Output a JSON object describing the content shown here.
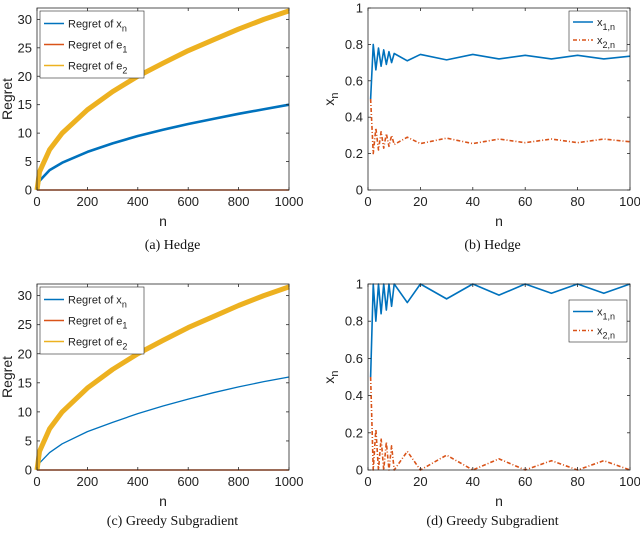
{
  "chart_data": [
    {
      "type": "line",
      "caption": "(a) Hedge",
      "xlabel": "n",
      "ylabel": "Regret",
      "xlim": [
        0,
        1000
      ],
      "ylim": [
        0,
        32
      ],
      "xticks": [
        0,
        200,
        400,
        600,
        800,
        1000
      ],
      "yticks": [
        0,
        5,
        10,
        15,
        20,
        25,
        30
      ],
      "legend_position": "top-left",
      "series": [
        {
          "name": "Regret of x_n",
          "base": "Regret of x",
          "sub": "n",
          "color": "#0072BD",
          "x": [
            0,
            10,
            50,
            100,
            200,
            300,
            400,
            500,
            600,
            700,
            800,
            900,
            1000
          ],
          "y": [
            0,
            1.6,
            3.5,
            4.8,
            6.7,
            8.2,
            9.5,
            10.6,
            11.6,
            12.5,
            13.4,
            14.2,
            15.0
          ]
        },
        {
          "name": "Regret of e_1",
          "base": "Regret of e",
          "sub": "1",
          "color": "#D95319",
          "x": [
            0,
            1000
          ],
          "y": [
            0,
            0
          ]
        },
        {
          "name": "Regret of e_2",
          "base": "Regret of e",
          "sub": "2",
          "color": "#EDB120",
          "x": [
            0,
            10,
            50,
            100,
            200,
            300,
            400,
            500,
            600,
            700,
            800,
            900,
            1000
          ],
          "y": [
            0,
            3.2,
            7.1,
            10.0,
            14.1,
            17.3,
            20.0,
            22.3,
            24.5,
            26.4,
            28.3,
            30.0,
            31.5
          ]
        }
      ]
    },
    {
      "type": "line",
      "caption": "(b) Hedge",
      "xlabel": "n",
      "ylabel": "x_n",
      "ylabel_base": "x",
      "ylabel_sub": "n",
      "xlim": [
        0,
        100
      ],
      "ylim": [
        0,
        1
      ],
      "xticks": [
        0,
        20,
        40,
        60,
        80,
        100
      ],
      "yticks": [
        0,
        0.2,
        0.4,
        0.6,
        0.8,
        1
      ],
      "legend_position": "top-right",
      "series": [
        {
          "name": "x_1,n",
          "base": "x",
          "sub": "1,n",
          "color": "#0072BD",
          "style": "solid",
          "x": [
            1,
            2,
            3,
            4,
            5,
            6,
            7,
            8,
            9,
            10,
            15,
            20,
            30,
            40,
            50,
            60,
            70,
            80,
            90,
            100
          ],
          "y": [
            0.5,
            0.8,
            0.66,
            0.78,
            0.68,
            0.77,
            0.69,
            0.76,
            0.7,
            0.75,
            0.71,
            0.745,
            0.715,
            0.745,
            0.72,
            0.74,
            0.72,
            0.74,
            0.72,
            0.735
          ]
        },
        {
          "name": "x_2,n",
          "base": "x",
          "sub": "2,n",
          "color": "#D95319",
          "style": "dashdot",
          "x": [
            1,
            2,
            3,
            4,
            5,
            6,
            7,
            8,
            9,
            10,
            15,
            20,
            30,
            40,
            50,
            60,
            70,
            80,
            90,
            100
          ],
          "y": [
            0.5,
            0.2,
            0.34,
            0.22,
            0.32,
            0.23,
            0.31,
            0.24,
            0.3,
            0.25,
            0.29,
            0.255,
            0.285,
            0.255,
            0.28,
            0.26,
            0.28,
            0.26,
            0.28,
            0.265
          ]
        }
      ]
    },
    {
      "type": "line",
      "caption": "(c) Greedy Subgradient",
      "xlabel": "n",
      "ylabel": "Regret",
      "xlim": [
        0,
        1000
      ],
      "ylim": [
        0,
        32
      ],
      "xticks": [
        0,
        200,
        400,
        600,
        800,
        1000
      ],
      "yticks": [
        0,
        5,
        10,
        15,
        20,
        25,
        30
      ],
      "legend_position": "top-left",
      "series": [
        {
          "name": "Regret of x_n",
          "base": "Regret of x",
          "sub": "n",
          "color": "#0072BD",
          "x": [
            0,
            10,
            50,
            100,
            200,
            300,
            400,
            500,
            600,
            700,
            800,
            900,
            1000
          ],
          "y": [
            0,
            1.2,
            3.0,
            4.5,
            6.6,
            8.2,
            9.7,
            11.0,
            12.2,
            13.3,
            14.3,
            15.2,
            16.0
          ]
        },
        {
          "name": "Regret of e_1",
          "base": "Regret of e",
          "sub": "1",
          "color": "#D95319",
          "x": [
            0,
            1000
          ],
          "y": [
            0,
            0
          ]
        },
        {
          "name": "Regret of e_2",
          "base": "Regret of e",
          "sub": "2",
          "color": "#EDB120",
          "x": [
            0,
            10,
            50,
            100,
            200,
            300,
            400,
            500,
            600,
            700,
            800,
            900,
            1000
          ],
          "y": [
            0,
            3.2,
            7.1,
            10.0,
            14.1,
            17.3,
            20.0,
            22.3,
            24.5,
            26.4,
            28.3,
            30.0,
            31.5
          ]
        }
      ]
    },
    {
      "type": "line",
      "caption": "(d) Greedy Subgradient",
      "xlabel": "n",
      "ylabel": "x_n",
      "ylabel_base": "x",
      "ylabel_sub": "n",
      "xlim": [
        0,
        100
      ],
      "ylim": [
        0,
        1
      ],
      "xticks": [
        0,
        20,
        40,
        60,
        80,
        100
      ],
      "yticks": [
        0,
        0.2,
        0.4,
        0.6,
        0.8,
        1
      ],
      "legend_position": "right",
      "series": [
        {
          "name": "x_1,n",
          "base": "x",
          "sub": "1,n",
          "color": "#0072BD",
          "style": "solid",
          "x": [
            1,
            2,
            3,
            4,
            5,
            6,
            7,
            8,
            9,
            10,
            15,
            20,
            30,
            40,
            50,
            60,
            70,
            80,
            90,
            100
          ],
          "y": [
            0.5,
            1.0,
            0.8,
            1.0,
            0.84,
            1.0,
            0.86,
            1.0,
            0.88,
            1.0,
            0.9,
            1.0,
            0.92,
            1.0,
            0.94,
            1.0,
            0.95,
            1.0,
            0.95,
            1.0
          ]
        },
        {
          "name": "x_2,n",
          "base": "x",
          "sub": "2,n",
          "color": "#D95319",
          "style": "dashdot",
          "x": [
            1,
            2,
            3,
            4,
            5,
            6,
            7,
            8,
            9,
            10,
            15,
            20,
            30,
            40,
            50,
            60,
            70,
            80,
            90,
            100
          ],
          "y": [
            0.5,
            0.0,
            0.22,
            0.0,
            0.17,
            0.0,
            0.15,
            0.0,
            0.13,
            0.0,
            0.1,
            0.0,
            0.08,
            0.0,
            0.06,
            0.0,
            0.05,
            0.0,
            0.05,
            0.0
          ]
        }
      ]
    }
  ]
}
